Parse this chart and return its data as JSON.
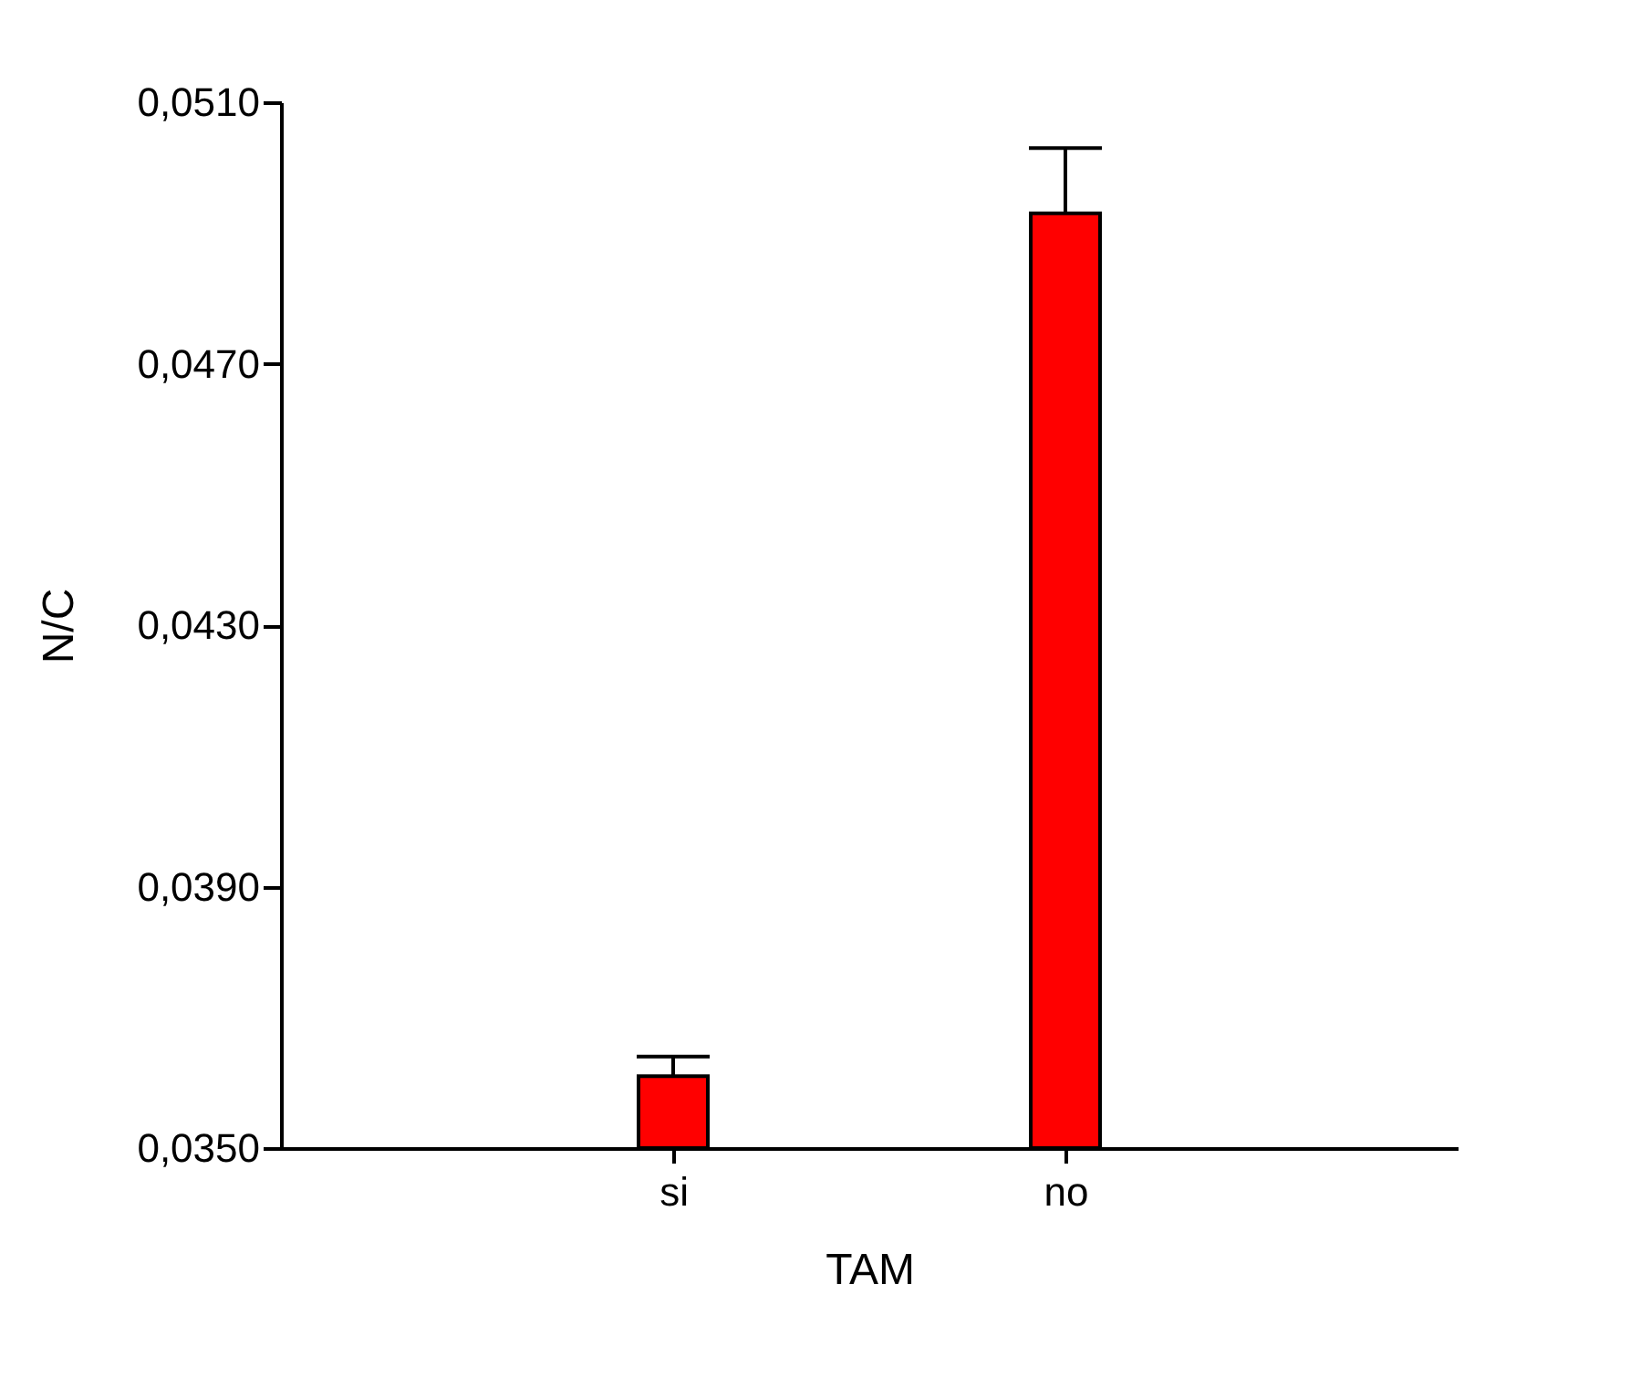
{
  "chart_data": {
    "type": "bar",
    "xlabel": "TAM",
    "ylabel": "N/C",
    "categories": [
      "si",
      "no"
    ],
    "values": [
      0.0361,
      0.0493
    ],
    "errors": [
      0.0003,
      0.001
    ],
    "color": "#ff0000",
    "ylim": [
      0.035,
      0.051
    ],
    "yticks": [
      {
        "value": 0.035,
        "label": "0,0350"
      },
      {
        "value": 0.039,
        "label": "0,0390"
      },
      {
        "value": 0.043,
        "label": "0,0430"
      },
      {
        "value": 0.047,
        "label": "0,0470"
      },
      {
        "value": 0.051,
        "label": "0,0510"
      }
    ],
    "grid": false
  }
}
